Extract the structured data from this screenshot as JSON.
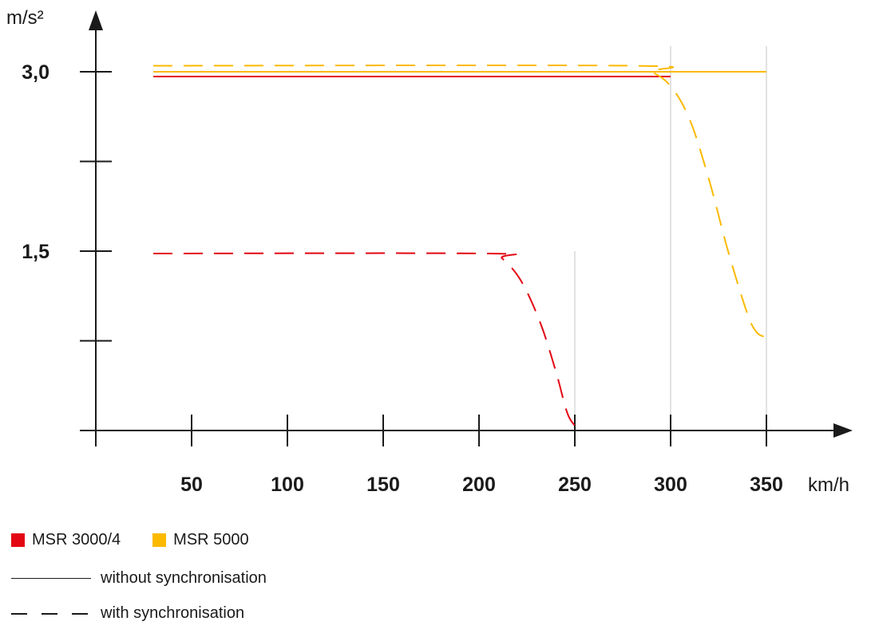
{
  "chart_data": {
    "type": "line",
    "xlabel": "km/h",
    "ylabel": "m/s²",
    "xlim": [
      0,
      390
    ],
    "ylim": [
      0,
      3.6
    ],
    "x_ticks": [
      50,
      100,
      150,
      200,
      250,
      300,
      350
    ],
    "x_tick_labels": [
      "50",
      "100",
      "150",
      "200",
      "250",
      "300",
      "350"
    ],
    "y_ticks": [
      0.75,
      1.5,
      2.25,
      3.0
    ],
    "y_tick_labels": [
      {
        "value": 1.5,
        "label": "1,5"
      },
      {
        "value": 3.0,
        "label": "3,0"
      }
    ],
    "reference_lines_x": [
      250,
      300,
      350
    ],
    "series": [
      {
        "name": "MSR 3000/4",
        "style": "solid",
        "color": "#e30613",
        "x": [
          30,
          300
        ],
        "y": [
          2.96,
          2.96
        ]
      },
      {
        "name": "MSR 3000/4",
        "style": "dashed",
        "color": "#e30613",
        "x": [
          30,
          205,
          212,
          222,
          232,
          240,
          246,
          250
        ],
        "y": [
          1.48,
          1.48,
          1.44,
          1.25,
          0.9,
          0.5,
          0.15,
          0.04
        ]
      },
      {
        "name": "MSR 5000",
        "style": "solid",
        "color": "#fbb900",
        "x": [
          30,
          350
        ],
        "y": [
          3.0,
          3.0
        ]
      },
      {
        "name": "MSR 5000",
        "style": "dashed",
        "color": "#fbb900",
        "x": [
          30,
          280,
          290,
          300,
          310,
          320,
          330,
          340,
          345,
          350
        ],
        "y": [
          3.05,
          3.05,
          3.0,
          2.88,
          2.6,
          2.1,
          1.5,
          0.98,
          0.82,
          0.78
        ]
      }
    ],
    "legend": {
      "items": [
        {
          "label": "MSR 3000/4",
          "color": "#e30613"
        },
        {
          "label": "MSR 5000",
          "color": "#fbb900"
        }
      ],
      "styles": [
        {
          "label": "without synchronisation",
          "style": "solid"
        },
        {
          "label": "with synchronisation",
          "style": "dashed"
        }
      ],
      "placement": "bottom-left"
    },
    "grid": false
  }
}
